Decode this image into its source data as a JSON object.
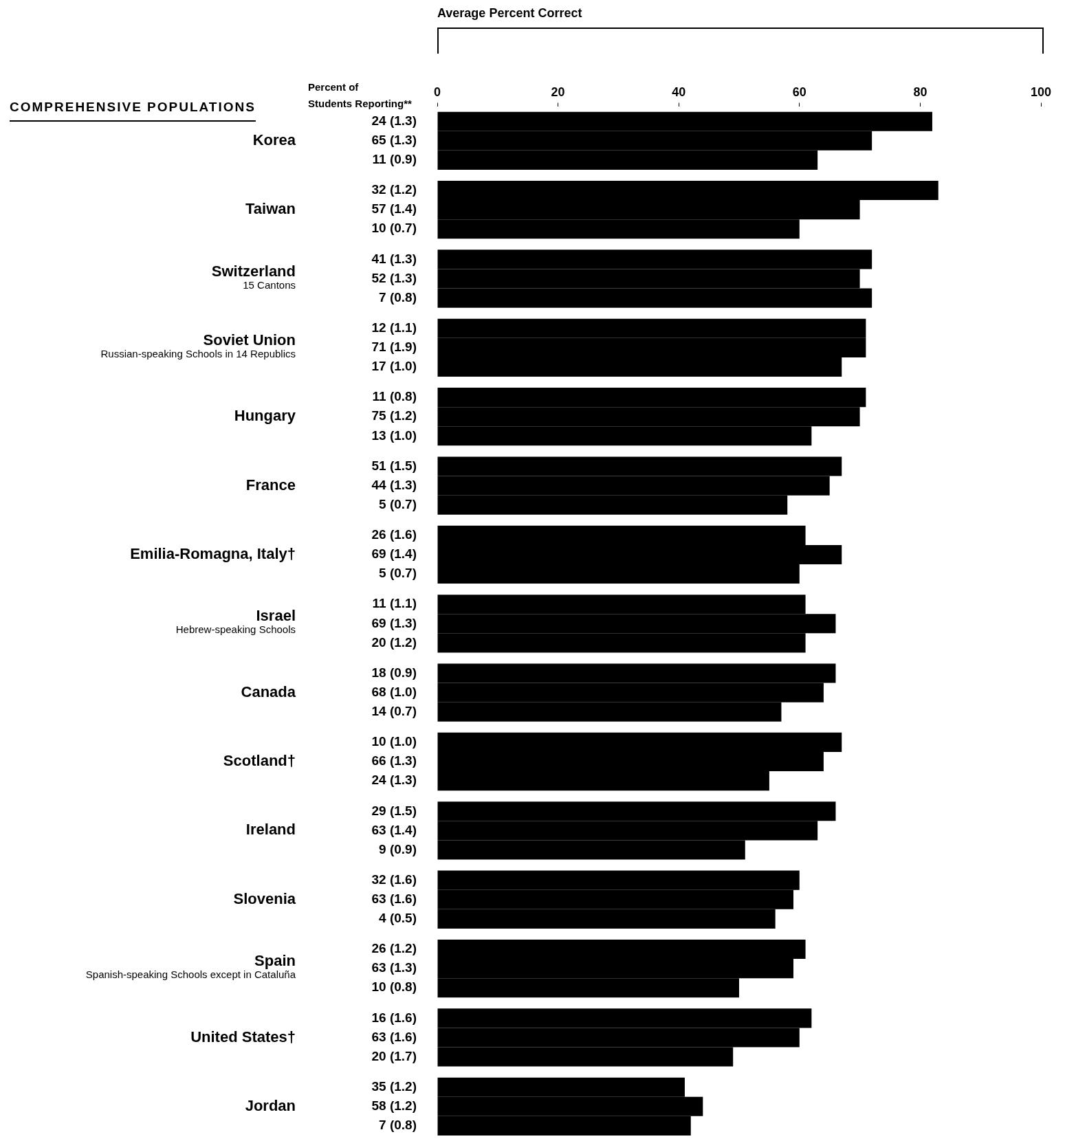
{
  "chart_data": {
    "type": "bar",
    "orientation": "horizontal",
    "title": "COMPREHENSIVE POPULATIONS",
    "x2label": "Average Percent Correct",
    "annotations": [
      "Percent of\nStudents Reporting**",
      "24 (1.3)",
      "65 (1.3)",
      "11 (0.9)",
      "32 (1.2)",
      "57 (1.4)",
      "10 (0.7)",
      "41 (1.3)",
      "52 (1.3)",
      "7 (0.8)",
      "12 (1.1)",
      "71 (1.9)",
      "17 (1.0)",
      "11 (0.8)",
      "75 (1.2)",
      "13 (1.0)",
      "51 (1.5)",
      "44 (1.3)",
      "5 (0.7)",
      "26 (1.6)",
      "69 (1.4)",
      "5 (0.7)",
      "11 (1.1)",
      "69 (1.3)",
      "20 (1.2)",
      "18 (0.9)",
      "68 (1.0)",
      "14 (0.7)",
      "10 (1.0)",
      "66 (1.3)",
      "24 (1.3)",
      "29 (1.5)",
      "63 (1.4)",
      "9 (0.9)",
      "32 (1.6)",
      "63 (1.6)",
      "4 (0.5)",
      "26 (1.2)",
      "63 (1.3)",
      "10 (0.8)",
      "16 (1.6)",
      "63 (1.6)",
      "20 (1.7)",
      "35 (1.2)",
      "58 (1.2)",
      "7 (0.8)"
    ],
    "categories": [
      "Korea",
      "Taiwan",
      "Switzerland\n15 Cantons",
      "Soviet Union\nRussian-speaking Schools in 14 Republics",
      "Hungary",
      "France",
      "Emilia-Romagna, Italy†",
      "Israel\nHebrew-speaking Schools",
      "Canada",
      "Scotland†",
      "Ireland",
      "Slovenia",
      "Spain\nSpanish-speaking Schools except in Cataluña",
      "United States†",
      "Jordan"
    ],
    "series": [
      {
        "color": "#000000",
        "axis": "x2",
        "values": [
          82,
          83,
          72,
          71,
          71,
          67,
          61,
          61,
          66,
          67,
          66,
          60,
          61,
          62,
          41
        ]
      },
      {
        "color": "#000000",
        "axis": "x2",
        "values": [
          72,
          70,
          70,
          71,
          70,
          65,
          67,
          66,
          64,
          64,
          63,
          59,
          59,
          60,
          44
        ]
      },
      {
        "color": "#000000",
        "axis": "x2",
        "values": [
          63,
          60,
          72,
          67,
          62,
          58,
          60,
          61,
          57,
          55,
          51,
          56,
          50,
          49,
          42
        ]
      }
    ],
    "x2lim": [
      0,
      100
    ],
    "x2ticks": [
      0,
      20,
      40,
      60,
      80,
      100
    ],
    "grid": false,
    "legend": false
  }
}
